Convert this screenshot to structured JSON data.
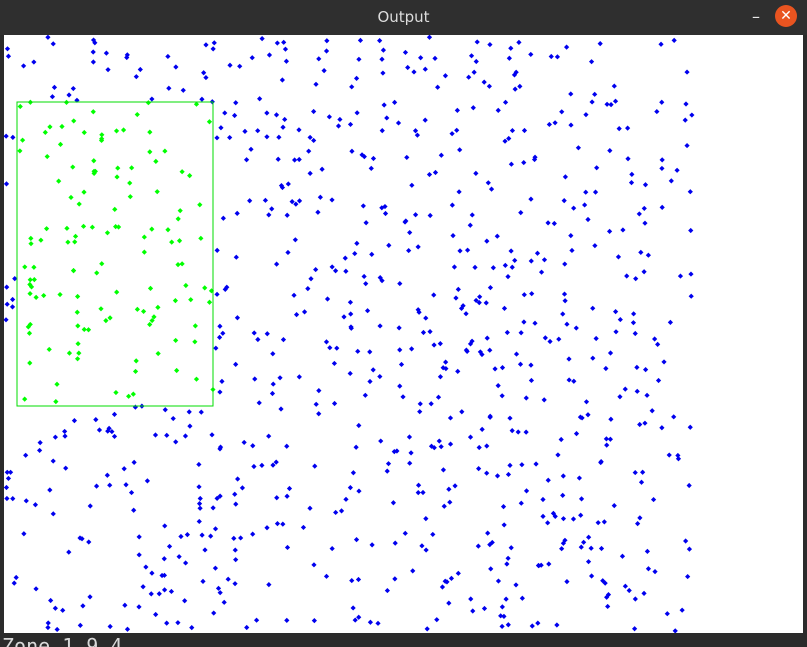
{
  "window": {
    "title": "Output",
    "minimize_symbol": "–",
    "close_symbol": "✕"
  },
  "terminal": {
    "text": "Zone 1 9 4"
  },
  "colors": {
    "background": "#ffffff",
    "outside_points": "#0000ee",
    "inside_points": "#00ff00",
    "rectangle": "#00dd00",
    "close_button": "#e95420"
  },
  "icons": {
    "minimize": "minimize-icon",
    "close": "close-icon"
  }
}
